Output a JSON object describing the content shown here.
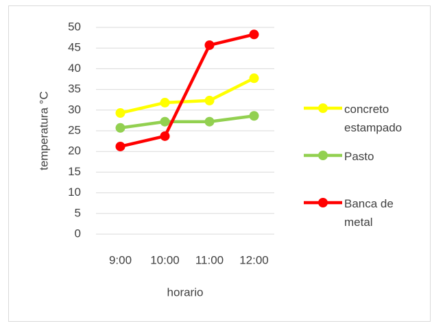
{
  "chart_data": {
    "type": "line",
    "categories": [
      "9:00",
      "10:00",
      "11:00",
      "12:00"
    ],
    "series": [
      {
        "name": "concreto estampado",
        "color": "#ffff00",
        "values": [
          29.3,
          31.8,
          32.3,
          37.7
        ]
      },
      {
        "name": "Pasto",
        "color": "#92d050",
        "values": [
          25.7,
          27.2,
          27.2,
          28.6
        ]
      },
      {
        "name": "Banca de metal",
        "color": "#ff0000",
        "values": [
          21.2,
          23.7,
          45.7,
          48.3
        ]
      }
    ],
    "xlabel": "horario",
    "ylabel": "temperatura °C",
    "ylim": [
      0,
      50
    ],
    "yticks": [
      0,
      5,
      10,
      15,
      20,
      25,
      30,
      35,
      40,
      45,
      50
    ],
    "grid": true,
    "legend": "right"
  }
}
